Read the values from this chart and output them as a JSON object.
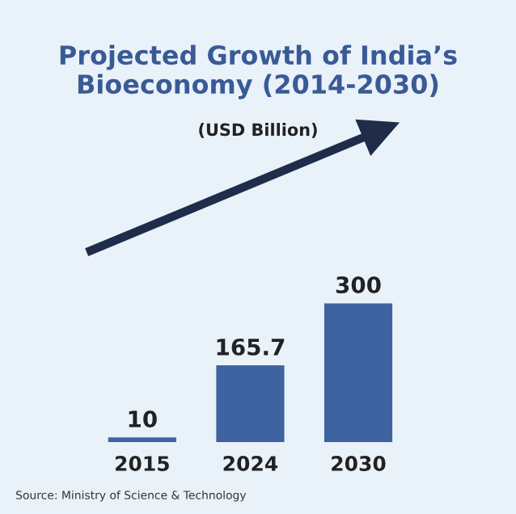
{
  "chart_data": {
    "type": "bar",
    "title": "Projected Growth of India’s\nBioeconomy (2014-2030)",
    "subtitle": "(USD Billion)",
    "categories": [
      "2015",
      "2024",
      "2030"
    ],
    "values": [
      10,
      165.7,
      300
    ],
    "color": "#3f63a0",
    "data_labels": true,
    "annotations": [
      "Source: Ministry of Science & Technology"
    ]
  }
}
